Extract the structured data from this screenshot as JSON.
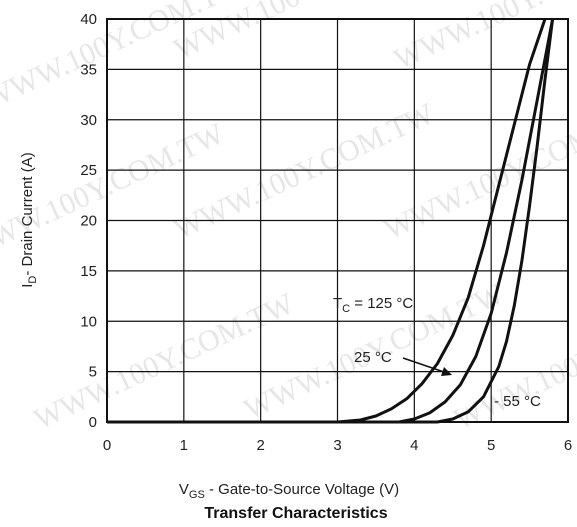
{
  "chart_data": {
    "type": "line",
    "title": "Transfer Characteristics",
    "xlabel": {
      "main": "V",
      "sub": "GS",
      "rest": " - Gate-to-Source Voltage (V)"
    },
    "ylabel": {
      "main": "I",
      "sub": "D",
      "rest": "- Drain Current (A)"
    },
    "xlim": [
      0,
      6
    ],
    "ylim": [
      0,
      40
    ],
    "xticks": [
      0,
      1,
      2,
      3,
      4,
      5,
      6
    ],
    "yticks": [
      0,
      5,
      10,
      15,
      20,
      25,
      30,
      35,
      40
    ],
    "grid": true,
    "watermark": "WWW.100Y.COM.TW",
    "series": [
      {
        "name": "T_C = 125 °C",
        "x": [
          3.0,
          3.3,
          3.5,
          3.7,
          3.9,
          4.1,
          4.3,
          4.5,
          4.7,
          4.9,
          5.1,
          5.3,
          5.5,
          5.7
        ],
        "y": [
          0.0,
          0.2,
          0.6,
          1.3,
          2.3,
          3.8,
          5.8,
          8.6,
          12.3,
          17.5,
          23.5,
          29.5,
          35.5,
          40.0
        ]
      },
      {
        "name": "25 °C",
        "x": [
          3.8,
          4.0,
          4.2,
          4.4,
          4.6,
          4.8,
          5.0,
          5.2,
          5.4,
          5.6,
          5.8
        ],
        "y": [
          0.0,
          0.3,
          0.9,
          2.0,
          3.7,
          6.5,
          10.8,
          16.8,
          24.0,
          32.0,
          40.0
        ]
      },
      {
        "name": "- 55 °C",
        "x": [
          4.3,
          4.5,
          4.7,
          4.9,
          5.1,
          5.2,
          5.3,
          5.4,
          5.5,
          5.6,
          5.7,
          5.8
        ],
        "y": [
          0.0,
          0.3,
          1.0,
          2.5,
          5.5,
          8.0,
          11.5,
          16.0,
          21.5,
          27.5,
          34.0,
          40.0
        ]
      }
    ],
    "annotations": {
      "tc_main": "T",
      "tc_sub": "C",
      "tc_rest": " = 125 °C",
      "t25": "25 °C",
      "t55": "- 55 °C"
    }
  }
}
